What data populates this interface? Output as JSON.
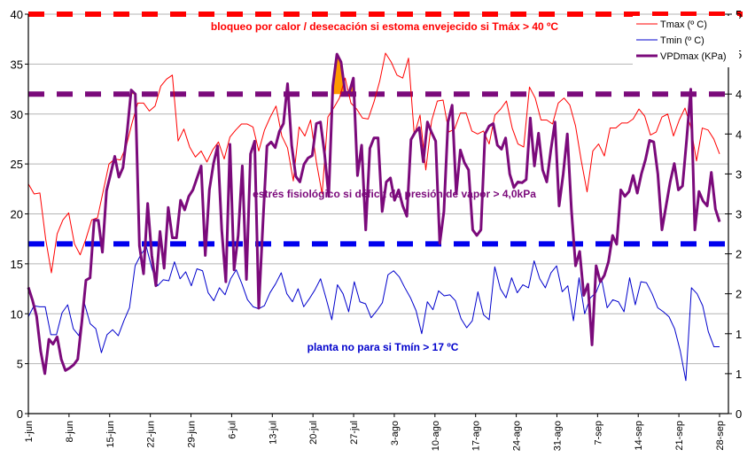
{
  "chart_data": {
    "type": "line",
    "title": "",
    "xlabel": "",
    "ylabel": "",
    "y2label": "",
    "ylim": [
      0,
      40
    ],
    "y2lim": [
      0,
      5
    ],
    "yticks": [
      "0",
      "5",
      "10",
      "15",
      "20",
      "25",
      "30",
      "35",
      "40"
    ],
    "y2ticks": [
      "0",
      "1",
      "1",
      "2",
      "2",
      "3",
      "3",
      "4",
      "4",
      "5",
      "5"
    ],
    "grid": true,
    "legend_position": "top-right",
    "x_start": "1-jun",
    "x_tick_labels": [
      "1-jun",
      "8-jun",
      "15-jun",
      "22-jun",
      "29-jun",
      "6-jul",
      "13-jul",
      "20-jul",
      "27-jul",
      "3-ago",
      "10-ago",
      "17-ago",
      "24-ago",
      "31-ago",
      "7-sep",
      "14-sep",
      "21-sep",
      "28-sep"
    ],
    "series": [
      {
        "name": "Tmax (º C)",
        "color": "#ff0000",
        "axis": "left",
        "values": [
          23,
          22,
          22.1,
          17.5,
          14.1,
          18,
          19.4,
          20.1,
          17,
          15.9,
          17.5,
          19.4,
          19.6,
          22.3,
          25,
          25.5,
          25.4,
          26.8,
          29.1,
          31.1,
          31.1,
          30.3,
          30.8,
          32.8,
          33.5,
          33.9,
          27.3,
          28.5,
          26.7,
          25.7,
          26.3,
          25.2,
          26.4,
          27.2,
          25.5,
          27.7,
          28.4,
          29,
          29,
          28.7,
          26.3,
          28.4,
          29.7,
          30.8,
          27.8,
          26.6,
          23.3,
          28.7,
          27.8,
          29.4,
          25.2,
          22,
          29.7,
          30.6,
          31.6,
          33.6,
          31.1,
          30.5,
          29.6,
          29.5,
          31.2,
          33.3,
          36.1,
          35.2,
          33.9,
          33.6,
          35.6,
          27.9,
          29.9,
          24.4,
          29.3,
          31.3,
          31.4,
          28.2,
          28.5,
          30.1,
          30.1,
          28.3,
          28,
          28.3,
          27,
          29.9,
          30.5,
          31.3,
          28.6,
          27,
          26.7,
          32.7,
          31.6,
          29.4,
          29.4,
          29,
          31.1,
          31.6,
          30.9,
          28.8,
          25.3,
          22.2,
          26.3,
          27,
          25.8,
          28.6,
          28.6,
          29.1,
          29.1,
          29.5,
          30.5,
          29.8,
          27.9,
          28.2,
          29.7,
          30,
          27.8,
          29.4,
          30.6,
          28.7,
          25.3,
          28.6,
          28.4,
          27.5,
          26
        ]
      },
      {
        "name": "Tmin (º C)",
        "color": "#0000cc",
        "axis": "left",
        "values": [
          9.7,
          10.8,
          10.7,
          10.7,
          7.9,
          7.9,
          10.1,
          10.9,
          8.5,
          7.8,
          11,
          9,
          8.5,
          6.1,
          7.9,
          8.4,
          7.8,
          9.3,
          10.6,
          14.8,
          15.9,
          16.7,
          14.5,
          12.8,
          13.4,
          13.3,
          15.2,
          13.5,
          14.2,
          12.8,
          14.5,
          14.3,
          12.1,
          11.3,
          12.6,
          11.9,
          13.5,
          14.4,
          13,
          11.4,
          10.7,
          10.5,
          10.8,
          12.1,
          13,
          14.1,
          12,
          11.2,
          12.5,
          10.7,
          11.5,
          12.4,
          13.5,
          11.5,
          9.4,
          12.9,
          12,
          10.2,
          13.2,
          11.2,
          11,
          9.6,
          10.3,
          11.1,
          13.9,
          14.3,
          13.7,
          12.6,
          11.6,
          10.3,
          8,
          11.2,
          10.4,
          12.3,
          11.8,
          11.9,
          11.3,
          9.5,
          8.6,
          9.3,
          12.2,
          9.9,
          9.4,
          14.7,
          12.5,
          11.6,
          13.6,
          12.1,
          12.9,
          12.6,
          15.3,
          13.5,
          12.6,
          14.1,
          14.8,
          12.2,
          12.8,
          9.3,
          13.6,
          10,
          11.6,
          12.1,
          13.5,
          10.6,
          11.4,
          11.2,
          10.2,
          13.6,
          10.9,
          13.2,
          13.1,
          12,
          10.6,
          10.2,
          9.7,
          8.5,
          6.3,
          3.3,
          12.6,
          12,
          10.8,
          8.2,
          6.7,
          6.7
        ]
      },
      {
        "name": "VPDmax (KPa)",
        "color": "#7b0a7b",
        "axis": "right",
        "values": [
          1.58,
          1.42,
          1.22,
          0.78,
          0.5,
          0.93,
          0.87,
          0.96,
          0.68,
          0.54,
          0.57,
          0.61,
          0.68,
          1.15,
          1.67,
          1.7,
          2.42,
          2.42,
          2.02,
          2.79,
          3.0,
          3.22,
          2.96,
          3.08,
          3.52,
          4.05,
          4.0,
          2.1,
          1.75,
          2.63,
          1.98,
          1.6,
          2.28,
          1.82,
          2.58,
          2.2,
          2.2,
          2.67,
          2.55,
          2.72,
          2.8,
          2.95,
          3.1,
          1.98,
          2.8,
          3.13,
          3.35,
          2.3,
          1.65,
          3.37,
          1.8,
          2.23,
          3.1,
          1.68,
          3.25,
          3.41,
          1.32,
          2.37,
          3.35,
          3.4,
          3.33,
          3.53,
          3.63,
          4.13,
          3.36,
          2.97,
          2.9,
          3.12,
          3.2,
          3.23,
          3.63,
          3.65,
          3.25,
          2.72,
          4.1,
          4.5,
          4.4,
          4.02,
          4.02,
          4.2,
          2.98,
          3.36,
          2.3,
          3.32,
          3.45,
          3.45,
          2.53,
          2.9,
          2.95,
          2.67,
          2.8,
          2.6,
          2.47,
          3.43,
          3.52,
          3.58,
          3.15,
          3.65,
          3.52,
          3.41,
          2.13,
          2.53,
          3.65,
          3.86,
          2.75,
          3.3,
          3.14,
          3.05,
          2.3,
          2.23,
          2.3,
          3.5,
          3.6,
          3.63,
          3.36,
          3.31,
          3.45,
          3.0,
          2.83,
          2.9,
          2.89,
          2.93,
          3.7,
          3.1,
          3.51,
          3.05,
          2.9,
          3.3,
          3.65,
          2.6,
          3.0,
          3.5,
          2.55,
          1.85,
          2.03,
          1.48,
          1.62,
          0.86,
          1.85,
          1.65,
          1.73,
          1.9,
          2.23,
          2.12,
          2.8,
          2.72,
          2.78,
          2.98,
          2.76,
          3.0,
          3.18,
          3.42,
          3.4,
          3.0,
          2.3,
          2.6,
          2.9,
          3.13,
          2.8,
          2.85,
          3.43,
          4.06,
          2.3,
          2.78,
          2.66,
          2.6,
          3.02,
          2.56,
          2.4
        ]
      }
    ],
    "thresholds": [
      {
        "name": "Tmax threshold",
        "value": 40,
        "axis": "left",
        "color": "#ff0000",
        "label": "bloqueo por calor / desecación si estoma envejecido si Tmáx > 40 ºC"
      },
      {
        "name": "VPD threshold",
        "value": 4.0,
        "axis": "right",
        "color": "#7b0a7b",
        "label": "estrés fisiológico si déficit de presión de vapor > 4,0kPa"
      },
      {
        "name": "Tmin threshold",
        "value": 17,
        "axis": "left",
        "color": "#0000ee",
        "label": "planta no para si Tmín > 17 ºC"
      }
    ],
    "highlight_fill_color": "#ff9900",
    "highlight_description": "VPDmax above 4,0 kPa threshold"
  }
}
